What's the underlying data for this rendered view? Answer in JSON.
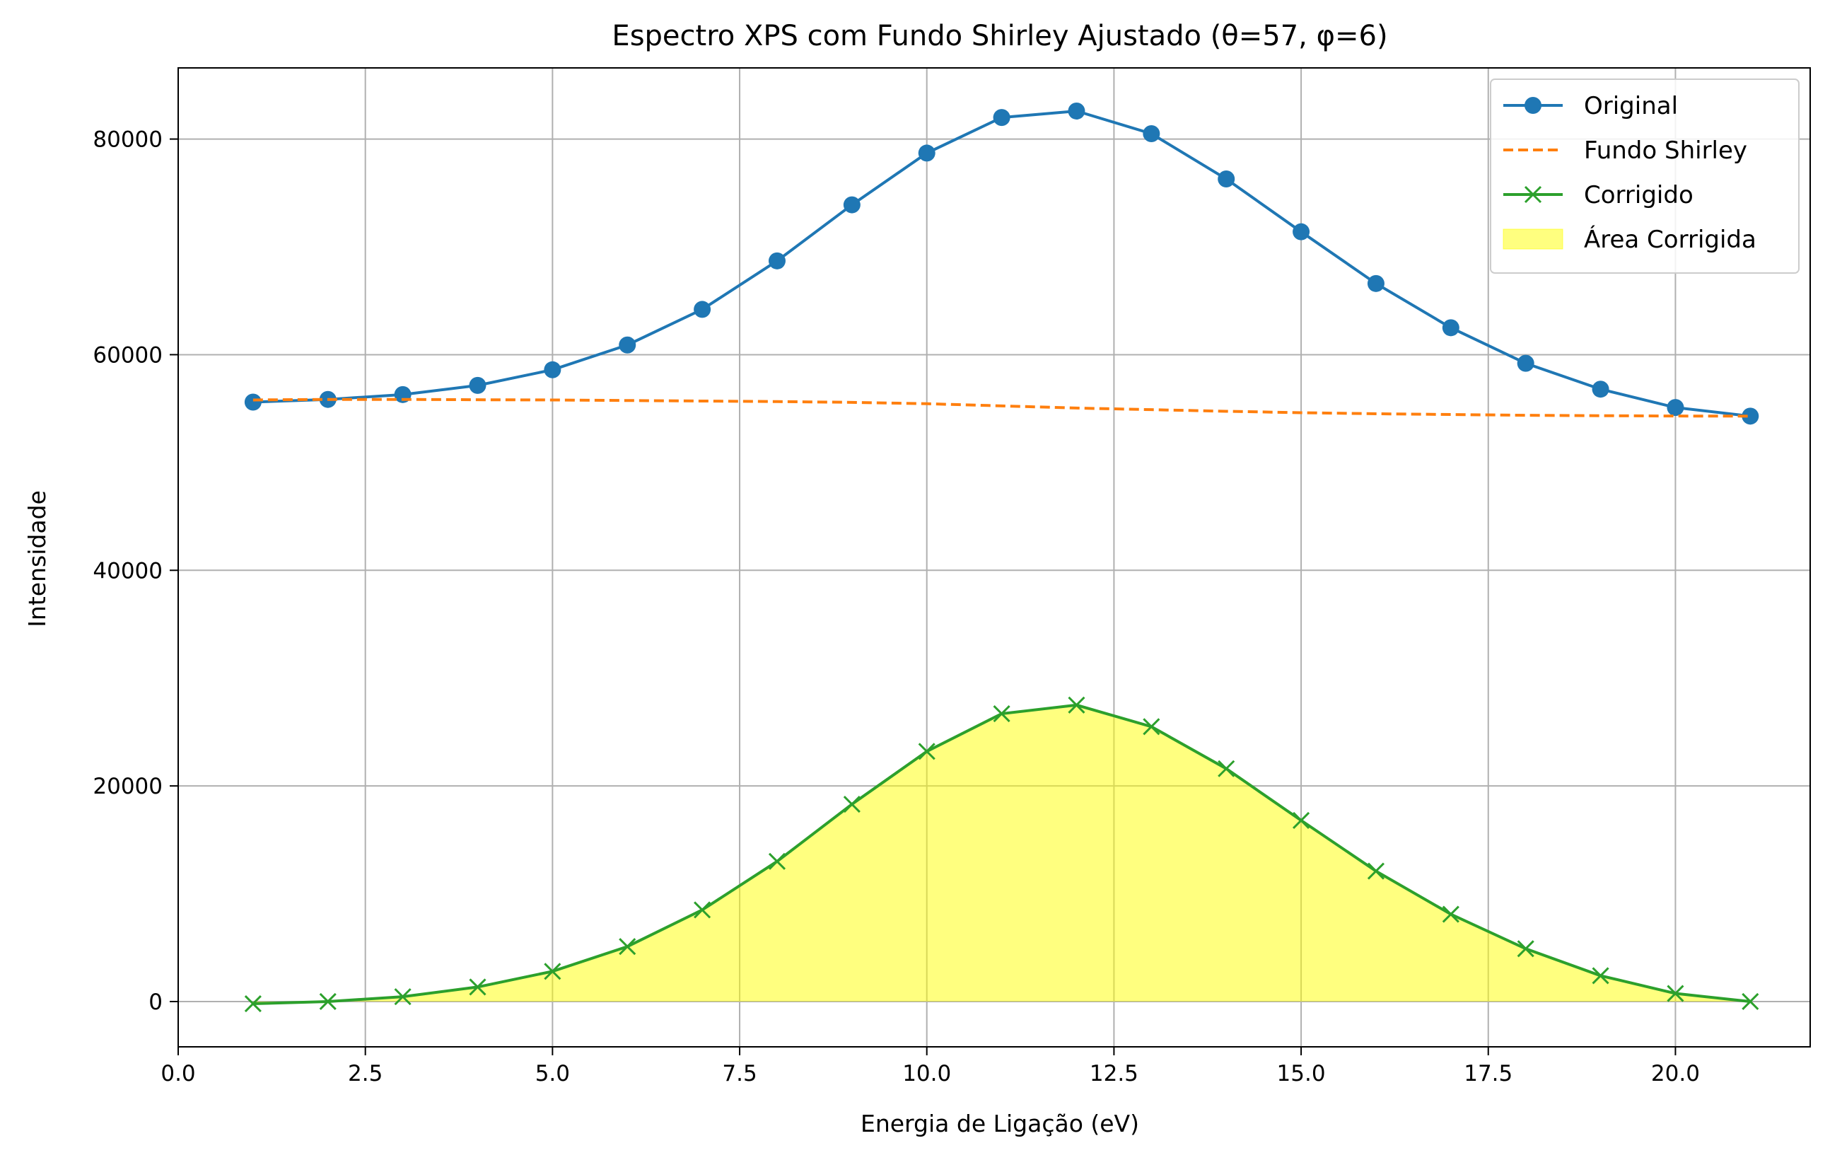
{
  "chart_data": {
    "type": "line",
    "title": "Espectro XPS com Fundo Shirley Ajustado (θ=57, φ=6)",
    "xlabel": "Energia de Ligação (eV)",
    "ylabel": "Intensidade",
    "xlim": [
      0,
      21.8
    ],
    "ylim": [
      -4200,
      86600
    ],
    "x_ticks": [
      0.0,
      2.5,
      5.0,
      7.5,
      10.0,
      12.5,
      15.0,
      17.5,
      20.0
    ],
    "x_tick_labels": [
      "0.0",
      "2.5",
      "5.0",
      "7.5",
      "10.0",
      "12.5",
      "15.0",
      "17.5",
      "20.0"
    ],
    "y_ticks": [
      0,
      20000,
      40000,
      60000,
      80000
    ],
    "y_tick_labels": [
      "0",
      "20000",
      "40000",
      "60000",
      "80000"
    ],
    "grid": true,
    "legend_position": "top-right",
    "x": [
      1,
      2,
      3,
      4,
      5,
      6,
      7,
      8,
      9,
      10,
      11,
      12,
      13,
      14,
      15,
      16,
      17,
      18,
      19,
      20,
      21
    ],
    "series": [
      {
        "name": "Original",
        "style": "line-circle",
        "color": "#1f77b4",
        "values": [
          55600,
          55850,
          56300,
          57150,
          58600,
          60900,
          64200,
          68700,
          73900,
          78700,
          82000,
          82600,
          80500,
          76300,
          71400,
          66600,
          62500,
          59200,
          56800,
          55100,
          54300
        ]
      },
      {
        "name": "Fundo Shirley",
        "style": "dashed",
        "color": "#ff7f0e",
        "values": [
          55800,
          55850,
          55850,
          55820,
          55800,
          55750,
          55700,
          55650,
          55580,
          55450,
          55250,
          55050,
          54900,
          54750,
          54620,
          54520,
          54450,
          54380,
          54340,
          54310,
          54300
        ]
      },
      {
        "name": "Corrigido",
        "style": "line-x",
        "color": "#2ca02c",
        "values": [
          -200,
          0,
          450,
          1350,
          2800,
          5100,
          8500,
          13000,
          18300,
          23200,
          26700,
          27500,
          25500,
          21600,
          16800,
          12100,
          8100,
          4900,
          2400,
          750,
          0
        ]
      }
    ],
    "fill": {
      "name": "Área Corrigida",
      "color": "#ffff00",
      "under_series": "Corrigido"
    }
  }
}
